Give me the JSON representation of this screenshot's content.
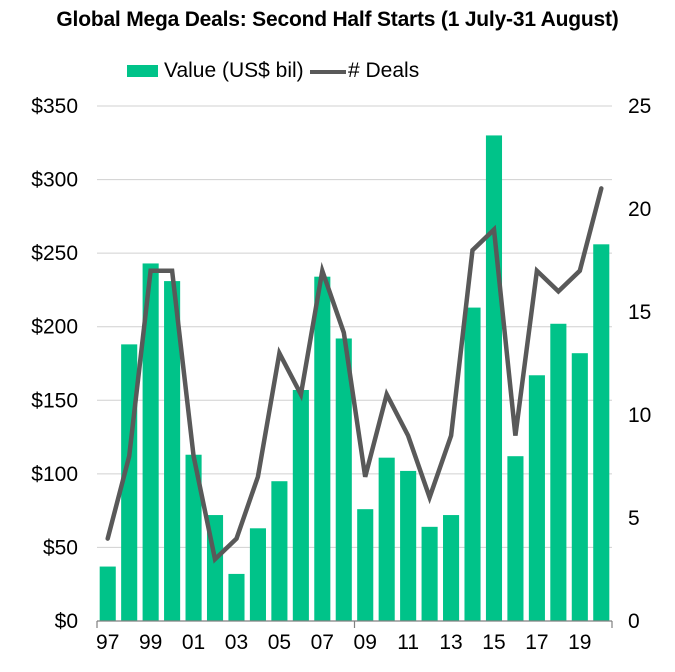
{
  "chart_data": {
    "type": "bar",
    "title": "Global Mega Deals: Second Half Starts (1 July-31 August)",
    "xlabel": "",
    "ylabel": "",
    "y2label": "",
    "legend_position": "top-center",
    "grid": true,
    "categories": [
      "97",
      "98",
      "99",
      "00",
      "01",
      "02",
      "03",
      "04",
      "05",
      "06",
      "07",
      "08",
      "09",
      "10",
      "11",
      "12",
      "13",
      "14",
      "15",
      "16",
      "17",
      "18",
      "19",
      "20"
    ],
    "x_tick_labels": [
      "97",
      "99",
      "01",
      "03",
      "05",
      "07",
      "09",
      "11",
      "13",
      "15",
      "17",
      "19"
    ],
    "x_tick_categories": [
      "97",
      "99",
      "01",
      "03",
      "05",
      "07",
      "09",
      "11",
      "13",
      "15",
      "17",
      "19"
    ],
    "ylim": [
      0,
      350
    ],
    "y_ticks": [
      0,
      50,
      100,
      150,
      200,
      250,
      300,
      350
    ],
    "y_tick_labels": [
      "$0",
      "$50",
      "$100",
      "$150",
      "$200",
      "$250",
      "$300",
      "$350"
    ],
    "y2lim": [
      0,
      25
    ],
    "y2_ticks": [
      0,
      5,
      10,
      15,
      20,
      25
    ],
    "y2_tick_labels": [
      "0",
      "5",
      "10",
      "15",
      "20",
      "25"
    ],
    "series": [
      {
        "name": "Value (US$ bil)",
        "type": "bar",
        "axis": "left",
        "color": "#00C389",
        "values": [
          37,
          188,
          243,
          231,
          113,
          72,
          32,
          63,
          95,
          157,
          234,
          192,
          76,
          111,
          102,
          64,
          72,
          213,
          330,
          112,
          167,
          202,
          182,
          256
        ]
      },
      {
        "name": "# Deals",
        "type": "line",
        "axis": "right",
        "color": "#595959",
        "values": [
          4,
          8,
          17,
          17,
          8,
          3,
          4,
          7,
          13,
          11,
          17,
          14,
          7,
          11,
          9,
          6,
          9,
          18,
          19,
          9,
          17,
          16,
          17,
          21
        ]
      }
    ]
  },
  "legend": {
    "bar_label": "Value (US$ bil)",
    "line_label": "# Deals"
  }
}
